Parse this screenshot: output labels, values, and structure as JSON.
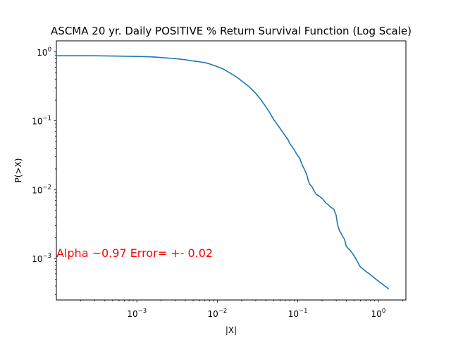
{
  "chart_data": {
    "type": "line",
    "title": "ASCMA 20 yr. Daily POSITIVE % Return Survival Function (Log Scale)",
    "xlabel": "|X|",
    "ylabel": "P(>X)",
    "xscale": "log",
    "yscale": "log",
    "xlim": [
      0.0001,
      2.2
    ],
    "ylim": [
      0.00025,
      1.45
    ],
    "grid": false,
    "xticks": [
      {
        "value": 0.001,
        "base": "10",
        "exp": "−3"
      },
      {
        "value": 0.01,
        "base": "10",
        "exp": "−2"
      },
      {
        "value": 0.1,
        "base": "10",
        "exp": "−1"
      },
      {
        "value": 1,
        "base": "10",
        "exp": "0"
      }
    ],
    "yticks": [
      {
        "value": 0.001,
        "base": "10",
        "exp": "−3"
      },
      {
        "value": 0.01,
        "base": "10",
        "exp": "−2"
      },
      {
        "value": 0.1,
        "base": "10",
        "exp": "−1"
      },
      {
        "value": 1,
        "base": "10",
        "exp": "0"
      }
    ],
    "series": [
      {
        "color": "#1f77b4",
        "x": [
          0.0001,
          0.0003,
          0.0006,
          0.001,
          0.0015,
          0.002,
          0.003,
          0.004,
          0.005,
          0.006,
          0.007,
          0.008,
          0.009,
          0.01,
          0.012,
          0.015,
          0.018,
          0.02,
          0.025,
          0.03,
          0.035,
          0.04,
          0.045,
          0.05,
          0.055,
          0.06,
          0.065,
          0.07,
          0.075,
          0.08,
          0.085,
          0.09,
          0.095,
          0.1,
          0.105,
          0.11,
          0.115,
          0.12,
          0.125,
          0.13,
          0.135,
          0.14,
          0.15,
          0.16,
          0.17,
          0.18,
          0.2,
          0.22,
          0.24,
          0.26,
          0.28,
          0.3,
          0.31,
          0.32,
          0.33,
          0.34,
          0.36,
          0.38,
          0.4,
          0.45,
          0.5,
          0.55,
          0.6,
          0.65,
          0.7,
          0.8,
          1.0,
          1.2,
          1.35
        ],
        "y": [
          0.88,
          0.88,
          0.87,
          0.86,
          0.85,
          0.83,
          0.8,
          0.77,
          0.74,
          0.72,
          0.7,
          0.67,
          0.64,
          0.61,
          0.56,
          0.48,
          0.42,
          0.38,
          0.31,
          0.25,
          0.2,
          0.16,
          0.13,
          0.105,
          0.09,
          0.078,
          0.068,
          0.06,
          0.054,
          0.046,
          0.042,
          0.038,
          0.034,
          0.031,
          0.029,
          0.025,
          0.022,
          0.02,
          0.018,
          0.016,
          0.0135,
          0.012,
          0.011,
          0.0095,
          0.0085,
          0.0082,
          0.0075,
          0.0065,
          0.006,
          0.0055,
          0.0052,
          0.0042,
          0.0032,
          0.0028,
          0.0025,
          0.0024,
          0.0021,
          0.0019,
          0.0015,
          0.0013,
          0.0011,
          0.0009,
          0.00075,
          0.0007,
          0.00065,
          0.00058,
          0.00047,
          0.0004,
          0.00036
        ]
      }
    ],
    "annotations": [
      {
        "text": "Alpha ~0.97  Error= +- 0.02",
        "x": 0.0001,
        "y": 0.00105,
        "color": "#ff0000"
      }
    ]
  }
}
